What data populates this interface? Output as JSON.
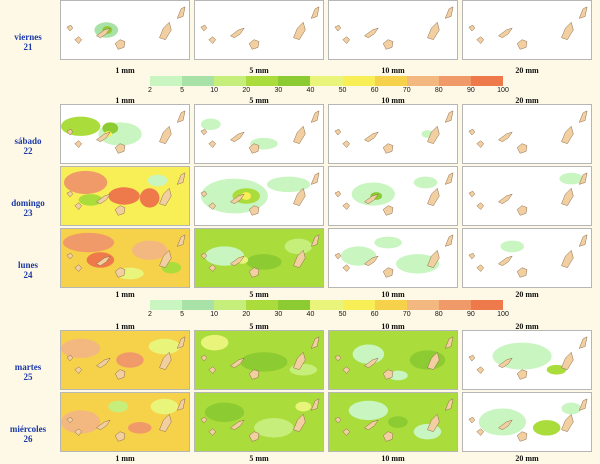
{
  "columns": [
    "1 mm",
    "5 mm",
    "10 mm",
    "20 mm"
  ],
  "legend": {
    "ticks": [
      "2",
      "5",
      "10",
      "20",
      "30",
      "40",
      "50",
      "60",
      "70",
      "80",
      "90",
      "100"
    ],
    "colors": [
      "#c8f5c0",
      "#a8e2a6",
      "#c6ee7a",
      "#aadc3c",
      "#8ccb32",
      "#e8f57a",
      "#f7ef55",
      "#f6d24a",
      "#f3b780",
      "#f09a6a",
      "#ee7a4c"
    ]
  },
  "days": [
    {
      "name": "viernes",
      "num": "21"
    },
    {
      "name": "sábado",
      "num": "22"
    },
    {
      "name": "domingo",
      "num": "23"
    },
    {
      "name": "lunes",
      "num": "24"
    },
    {
      "name": "martes",
      "num": "25"
    },
    {
      "name": "miércoles",
      "num": "26"
    }
  ],
  "grids": [
    {
      "rows": [
        {
          "bg": "#ffffff",
          "blobs": [
            [
              "#a8e2a6",
              46,
              30,
              12,
              8
            ],
            [
              "#8ccb32",
              47,
              30,
              5,
              4
            ]
          ]
        },
        {
          "bg": "#ffffff",
          "blobs": []
        },
        {
          "bg": "#ffffff",
          "blobs": []
        },
        {
          "bg": "#ffffff",
          "blobs": []
        }
      ]
    },
    {
      "rows": [
        {
          "bg": "#ffffff",
          "blobs": [
            [
              "#aadc3c",
              20,
              22,
              20,
              10
            ],
            [
              "#c8f5c0",
              60,
              30,
              22,
              12
            ],
            [
              "#8ccb32",
              50,
              24,
              8,
              6
            ],
            [
              "#f7ef55",
              48,
              30,
              4,
              3
            ]
          ]
        },
        {
          "bg": "#ffffff",
          "blobs": [
            [
              "#c8f5c0",
              16,
              20,
              10,
              6
            ],
            [
              "#c8f5c0",
              70,
              40,
              14,
              6
            ]
          ]
        },
        {
          "bg": "#ffffff",
          "blobs": [
            [
              "#c8f5c0",
              100,
              30,
              6,
              4
            ]
          ]
        },
        {
          "bg": "#ffffff",
          "blobs": []
        }
      ]
    },
    {
      "rows": [
        {
          "bg": "#f7ef55",
          "blobs": [
            [
              "#f09a6a",
              25,
              16,
              22,
              12
            ],
            [
              "#ee7a4c",
              64,
              30,
              16,
              9
            ],
            [
              "#aadc3c",
              30,
              34,
              12,
              6
            ],
            [
              "#c8f5c0",
              98,
              14,
              10,
              6
            ],
            [
              "#ee7a4c",
              90,
              32,
              10,
              10
            ]
          ]
        },
        {
          "bg": "#ffffff",
          "blobs": [
            [
              "#c8f5c0",
              40,
              30,
              34,
              18
            ],
            [
              "#aadc3c",
              52,
              30,
              14,
              8
            ],
            [
              "#f7ef55",
              52,
              30,
              5,
              4
            ],
            [
              "#c8f5c0",
              95,
              18,
              22,
              8
            ]
          ]
        },
        {
          "bg": "#ffffff",
          "blobs": [
            [
              "#c8f5c0",
              45,
              28,
              22,
              12
            ],
            [
              "#8ccb32",
              48,
              30,
              6,
              4
            ],
            [
              "#c8f5c0",
              98,
              16,
              12,
              6
            ]
          ]
        },
        {
          "bg": "#ffffff",
          "blobs": [
            [
              "#c8f5c0",
              110,
              12,
              12,
              6
            ]
          ]
        }
      ]
    },
    {
      "rows": [
        {
          "bg": "#f6d24a",
          "blobs": [
            [
              "#f09a6a",
              28,
              14,
              26,
              10
            ],
            [
              "#ee7a4c",
              40,
              32,
              14,
              8
            ],
            [
              "#f3b780",
              90,
              22,
              18,
              10
            ],
            [
              "#aadc3c",
              112,
              40,
              10,
              6
            ],
            [
              "#e8f57a",
              70,
              46,
              14,
              6
            ]
          ]
        },
        {
          "bg": "#aadc3c",
          "blobs": [
            [
              "#c8f5c0",
              30,
              28,
              20,
              10
            ],
            [
              "#8ccb32",
              70,
              34,
              18,
              8
            ],
            [
              "#e8f57a",
              48,
              32,
              6,
              4
            ],
            [
              "#c6ee7a",
              105,
              18,
              14,
              8
            ]
          ]
        },
        {
          "bg": "#ffffff",
          "blobs": [
            [
              "#c8f5c0",
              30,
              28,
              18,
              10
            ],
            [
              "#c8f5c0",
              90,
              36,
              22,
              10
            ],
            [
              "#c8f5c0",
              60,
              14,
              14,
              6
            ]
          ]
        },
        {
          "bg": "#ffffff",
          "blobs": [
            [
              "#c8f5c0",
              50,
              18,
              12,
              6
            ]
          ]
        }
      ]
    },
    {
      "rows": [
        {
          "bg": "#f6d24a",
          "blobs": [
            [
              "#f3b780",
              20,
              18,
              20,
              10
            ],
            [
              "#f09a6a",
              70,
              30,
              14,
              8
            ],
            [
              "#e8f57a",
              105,
              16,
              16,
              8
            ]
          ]
        },
        {
          "bg": "#aadc3c",
          "blobs": [
            [
              "#e8f57a",
              20,
              12,
              14,
              8
            ],
            [
              "#8ccb32",
              70,
              32,
              24,
              10
            ],
            [
              "#c6ee7a",
              110,
              40,
              14,
              6
            ]
          ]
        },
        {
          "bg": "#aadc3c",
          "blobs": [
            [
              "#c8f5c0",
              40,
              24,
              16,
              10
            ],
            [
              "#8ccb32",
              100,
              30,
              18,
              10
            ],
            [
              "#c8f5c0",
              70,
              46,
              10,
              5
            ]
          ]
        },
        {
          "bg": "#ffffff",
          "blobs": [
            [
              "#c8f5c0",
              60,
              26,
              30,
              14
            ],
            [
              "#aadc3c",
              95,
              40,
              10,
              5
            ]
          ]
        }
      ]
    },
    {
      "rows": [
        {
          "bg": "#f6d24a",
          "blobs": [
            [
              "#f3b780",
              20,
              30,
              20,
              12
            ],
            [
              "#f09a6a",
              80,
              36,
              12,
              6
            ],
            [
              "#e8f57a",
              105,
              14,
              14,
              8
            ],
            [
              "#c6ee7a",
              58,
              14,
              10,
              6
            ]
          ]
        },
        {
          "bg": "#aadc3c",
          "blobs": [
            [
              "#8ccb32",
              30,
              20,
              20,
              10
            ],
            [
              "#c6ee7a",
              80,
              36,
              20,
              10
            ],
            [
              "#e8f57a",
              110,
              14,
              8,
              5
            ]
          ]
        },
        {
          "bg": "#aadc3c",
          "blobs": [
            [
              "#c8f5c0",
              40,
              18,
              20,
              10
            ],
            [
              "#c8f5c0",
              100,
              40,
              14,
              8
            ],
            [
              "#8ccb32",
              70,
              30,
              10,
              6
            ]
          ]
        },
        {
          "bg": "#ffffff",
          "blobs": [
            [
              "#c8f5c0",
              40,
              30,
              24,
              14
            ],
            [
              "#aadc3c",
              85,
              36,
              14,
              8
            ],
            [
              "#c8f5c0",
              110,
              16,
              10,
              6
            ]
          ]
        }
      ]
    }
  ]
}
